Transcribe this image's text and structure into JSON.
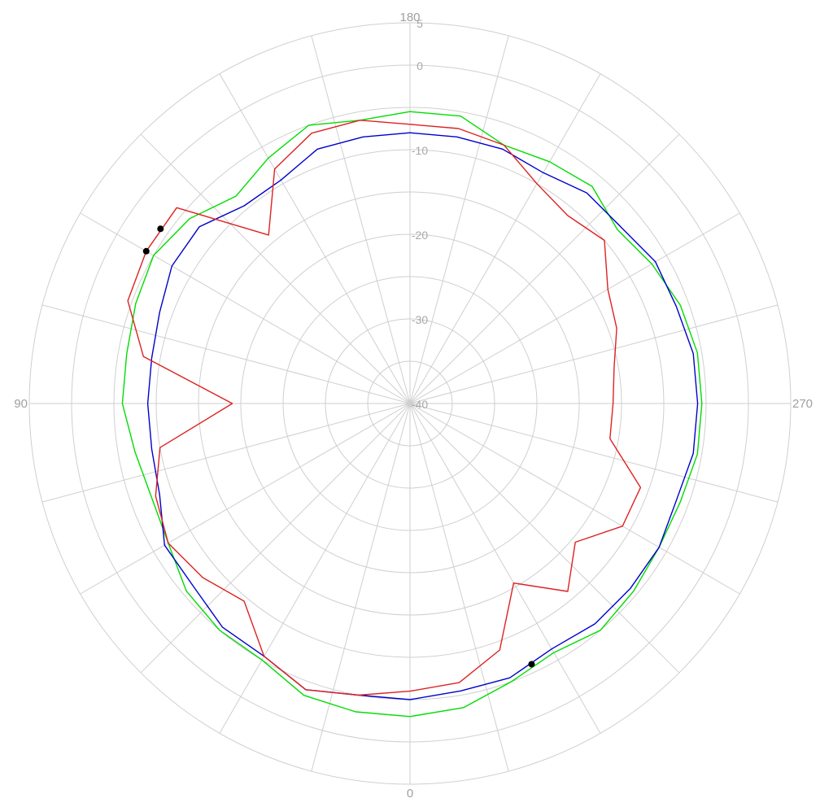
{
  "chart_data": {
    "type": "polar-line",
    "title": "",
    "angle_labels": [
      {
        "deg": 0,
        "text": "0"
      },
      {
        "deg": 90,
        "text": "90"
      },
      {
        "deg": 180,
        "text": "180"
      },
      {
        "deg": 270,
        "text": "270"
      }
    ],
    "angle_step": 15,
    "radial_ticks": [
      {
        "value": 5,
        "text": "5"
      },
      {
        "value": 0,
        "text": "0"
      },
      {
        "value": -10,
        "text": "-10"
      },
      {
        "value": -20,
        "text": "-20"
      },
      {
        "value": -30,
        "text": "-30"
      },
      {
        "value": -40,
        "text": "-40"
      }
    ],
    "radial_range": [
      -40,
      5
    ],
    "grid_circles": [
      5,
      0,
      -5,
      -10,
      -15,
      -20,
      -25,
      -30,
      -35
    ],
    "series": [
      {
        "color": "#00dd00",
        "points": [
          [
            0,
            -3.0
          ],
          [
            10,
            -3.0
          ],
          [
            20,
            -3.3
          ],
          [
            30,
            -5.0
          ],
          [
            40,
            -5.0
          ],
          [
            50,
            -5.5
          ],
          [
            60,
            -7.0
          ],
          [
            70,
            -7.5
          ],
          [
            80,
            -7.0
          ],
          [
            90,
            -6.0
          ],
          [
            100,
            -6.0
          ],
          [
            110,
            -5.5
          ],
          [
            120,
            -5.0
          ],
          [
            130,
            -6.0
          ],
          [
            140,
            -8.0
          ],
          [
            150,
            -6.5
          ],
          [
            160,
            -5.0
          ],
          [
            170,
            -6.0
          ],
          [
            180,
            -5.5
          ],
          [
            190,
            -5.5
          ],
          [
            200,
            -7.5
          ],
          [
            210,
            -7.0
          ],
          [
            220,
            -6.5
          ],
          [
            230,
            -8.0
          ],
          [
            240,
            -7.0
          ],
          [
            250,
            -6.0
          ],
          [
            260,
            -5.5
          ],
          [
            270,
            -5.5
          ],
          [
            280,
            -5.5
          ],
          [
            290,
            -6.0
          ],
          [
            300,
            -6.0
          ],
          [
            310,
            -5.5
          ],
          [
            320,
            -5.0
          ],
          [
            330,
            -6.0
          ],
          [
            340,
            -5.0
          ],
          [
            350,
            -3.5
          ]
        ]
      },
      {
        "color": "#0000cc",
        "points": [
          [
            0,
            -5.0
          ],
          [
            10,
            -5.0
          ],
          [
            20,
            -4.0
          ],
          [
            30,
            -5.5
          ],
          [
            40,
            -5.5
          ],
          [
            50,
            -6.5
          ],
          [
            60,
            -6.5
          ],
          [
            70,
            -8.5
          ],
          [
            80,
            -9.0
          ],
          [
            90,
            -9.0
          ],
          [
            100,
            -9.0
          ],
          [
            110,
            -8.5
          ],
          [
            120,
            -7.5
          ],
          [
            130,
            -7.5
          ],
          [
            140,
            -9.5
          ],
          [
            150,
            -9.5
          ],
          [
            160,
            -8.0
          ],
          [
            170,
            -8.0
          ],
          [
            180,
            -8.0
          ],
          [
            190,
            -8.0
          ],
          [
            200,
            -8.0
          ],
          [
            210,
            -8.5
          ],
          [
            220,
            -7.5
          ],
          [
            230,
            -7.5
          ],
          [
            240,
            -6.5
          ],
          [
            250,
            -6.5
          ],
          [
            260,
            -6.0
          ],
          [
            270,
            -6.0
          ],
          [
            280,
            -6.0
          ],
          [
            290,
            -6.5
          ],
          [
            300,
            -6.0
          ],
          [
            310,
            -6.0
          ],
          [
            320,
            -6.0
          ],
          [
            330,
            -6.5
          ],
          [
            340,
            -5.5
          ],
          [
            350,
            -5.5
          ]
        ]
      },
      {
        "color": "#dd2222",
        "points": [
          [
            0,
            -6.0
          ],
          [
            10,
            -5.0
          ],
          [
            20,
            -4.0
          ],
          [
            30,
            -5.5
          ],
          [
            40,
            -9.5
          ],
          [
            50,
            -8.0
          ],
          [
            60,
            -7.0
          ],
          [
            70,
            -8.0
          ],
          [
            80,
            -10.0
          ],
          [
            90,
            -19.0
          ],
          [
            100,
            -8.0
          ],
          [
            110,
            -4.5
          ],
          [
            120,
            -4.0
          ],
          [
            130,
            -4.0
          ],
          [
            140,
            -14.0
          ],
          [
            150,
            -8.0
          ],
          [
            160,
            -6.0
          ],
          [
            170,
            -6.0
          ],
          [
            180,
            -7.0
          ],
          [
            190,
            -7.0
          ],
          [
            200,
            -7.5
          ],
          [
            210,
            -10.0
          ],
          [
            220,
            -11.0
          ],
          [
            230,
            -10.0
          ],
          [
            240,
            -13.0
          ],
          [
            250,
            -14.0
          ],
          [
            260,
            -15.5
          ],
          [
            270,
            -16.0
          ],
          [
            280,
            -16.0
          ],
          [
            290,
            -11.0
          ],
          [
            300,
            -11.0
          ],
          [
            310,
            -14.5
          ],
          [
            320,
            -11.0
          ],
          [
            330,
            -15.5
          ],
          [
            340,
            -9.0
          ],
          [
            350,
            -6.5
          ]
        ]
      }
    ],
    "markers": [
      {
        "series": 1,
        "deg": 335
      },
      {
        "series": 2,
        "deg": 125
      },
      {
        "series": 2,
        "deg": 120
      }
    ]
  }
}
